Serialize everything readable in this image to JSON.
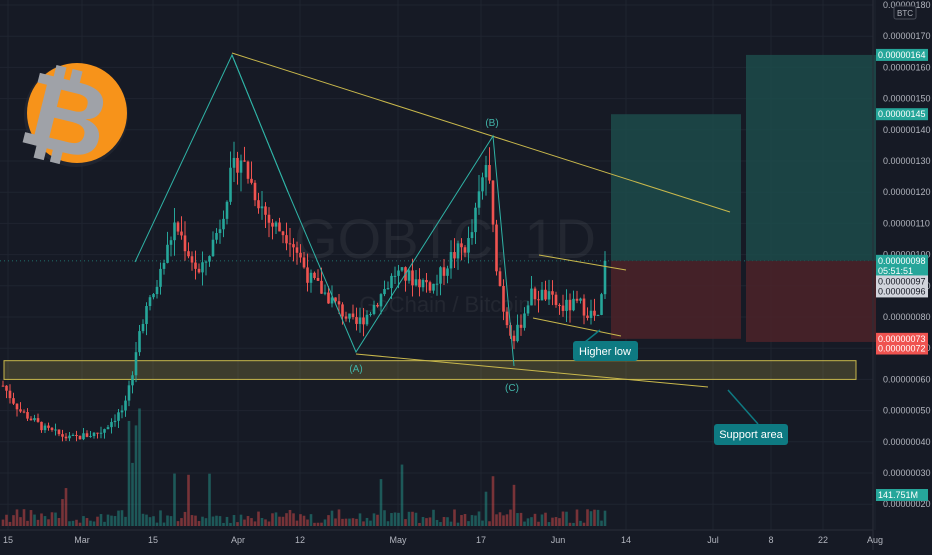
{
  "watermark": {
    "symbol": "GOBTC, 1D",
    "subtitle": "GoChain / Bitcoin"
  },
  "logo": {
    "name": "bitcoin-logo-icon",
    "color": "#f7931a",
    "glyph": "₿"
  },
  "colors": {
    "background": "#161a25",
    "up_candle": "#26a69a",
    "down_candle": "#ef5350",
    "trendline": "#c9b84c",
    "wave_line": "#2fb3a6",
    "profit_zone": "#1c4b4a",
    "loss_zone": "#4c2329",
    "callout": "#0e7a82",
    "support_box": "#c9b84c"
  },
  "price_axis": {
    "currency": "BTC",
    "ticks": [
      "0.00000180",
      "0.00000170",
      "0.00000160",
      "0.00000150",
      "0.00000140",
      "0.00000130",
      "0.00000120",
      "0.00000110",
      "0.00000100",
      "0.00000090",
      "0.00000080",
      "0.00000070",
      "0.00000060",
      "0.00000050",
      "0.00000040",
      "0.00000030",
      "0.00000020"
    ],
    "badges": [
      {
        "text": "0.00000164",
        "value": 1.64e-06,
        "color": "#26a69a"
      },
      {
        "text": "0.00000145",
        "value": 1.45e-06,
        "color": "#26a69a"
      },
      {
        "text": "0.00000098",
        "value": 9.8e-07,
        "color": "#26a69a"
      },
      {
        "text": "05:51:51",
        "value": 9.48e-07,
        "color": "#26a69a"
      },
      {
        "text": "0.00000097",
        "value": 9.14e-07,
        "color": "#d1d4dc"
      },
      {
        "text": "0.00000096",
        "value": 8.82e-07,
        "color": "#d1d4dc"
      },
      {
        "text": "0.00000073",
        "value": 7.3e-07,
        "color": "#ef5350"
      },
      {
        "text": "0.00000072",
        "value": 6.99e-07,
        "color": "#ef5350"
      },
      {
        "text": "141.751M",
        "value": 2.36e-08,
        "color": "#26a69a"
      }
    ]
  },
  "time_axis": {
    "ticks": [
      "15",
      "Mar",
      "15",
      "Apr",
      "12",
      "May",
      "17",
      "Jun",
      "14",
      "Jul",
      "8",
      "22",
      "Aug"
    ]
  },
  "annotations": {
    "wave_a": "(A)",
    "wave_b": "(B)",
    "wave_c": "(C)",
    "higher_low": "Higher low",
    "support_area": "Support area"
  },
  "chart_data": {
    "type": "candlestick",
    "title": "GOBTC, 1D",
    "subtitle": "GoChain / Bitcoin",
    "currency": "BTC",
    "ylim": [
      1.7e-07,
      1.82e-06
    ],
    "x_ticks": [
      "15",
      "Mar",
      "15",
      "Apr",
      "12",
      "May",
      "17",
      "Jun",
      "14",
      "Jul",
      "8",
      "22",
      "Aug"
    ],
    "last_price": 9.8e-07,
    "last_volume": "141.751M",
    "pivots": [
      {
        "label": "(A)",
        "price": 7.1e-07
      },
      {
        "label": "(B)",
        "price": 1.38e-06
      },
      {
        "label": "(C)",
        "price": 6.5e-07
      }
    ],
    "support_zone": [
      6e-07,
      6.6e-07
    ],
    "target_zones": [
      {
        "kind": "profit",
        "top": 1.45e-06,
        "bottom": 9.8e-07
      },
      {
        "kind": "loss",
        "top": 9.8e-07,
        "bottom": 7.3e-07
      },
      {
        "kind": "profit",
        "top": 1.64e-06,
        "bottom": 9.8e-07
      },
      {
        "kind": "loss",
        "top": 9.8e-07,
        "bottom": 7.2e-07
      }
    ],
    "annotations": [
      "Higher low",
      "Support area"
    ],
    "grid": true
  }
}
